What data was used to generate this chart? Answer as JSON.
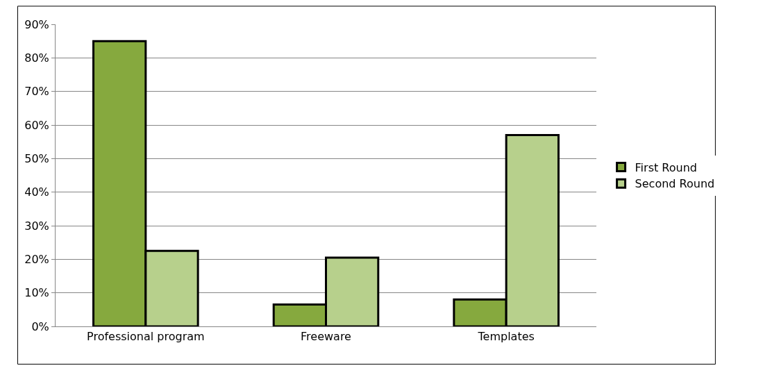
{
  "chart_data": {
    "type": "bar",
    "categories": [
      "Professional program",
      "Freeware",
      "Templates"
    ],
    "series": [
      {
        "name": "First Round",
        "color": "#86a93e",
        "values": [
          85,
          6.5,
          8
        ]
      },
      {
        "name": "Second Round",
        "color": "#b7d08c",
        "values": [
          22.5,
          20.5,
          57
        ]
      }
    ],
    "ylim": [
      0,
      90
    ],
    "yticks": [
      {
        "value": 0,
        "label": "0%"
      },
      {
        "value": 10,
        "label": "10%"
      },
      {
        "value": 20,
        "label": "20%"
      },
      {
        "value": 30,
        "label": "30%"
      },
      {
        "value": 40,
        "label": "40%"
      },
      {
        "value": 50,
        "label": "50%"
      },
      {
        "value": 60,
        "label": "60%"
      },
      {
        "value": 70,
        "label": "70%"
      },
      {
        "value": 80,
        "label": "80%"
      },
      {
        "value": 90,
        "label": "90%"
      }
    ],
    "grid": "y",
    "legend": "right"
  }
}
